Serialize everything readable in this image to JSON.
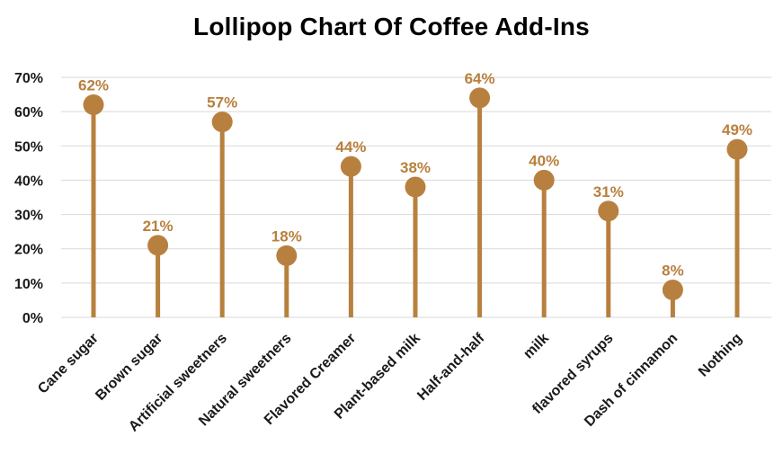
{
  "chart_data": {
    "type": "lollipop",
    "title": "Lollipop Chart Of Coffee Add-Ins",
    "xlabel": "",
    "ylabel": "",
    "categories": [
      "Cane sugar",
      "Brown sugar",
      "Artificial sweetners",
      "Natural sweetners",
      "Flavored Creamer",
      "Plant-based milk",
      "Half-and-half",
      "milk",
      "flavored syrups",
      "Dash of cinnamon",
      "Nothing"
    ],
    "values": [
      62,
      21,
      57,
      18,
      44,
      38,
      64,
      40,
      31,
      8,
      49
    ],
    "value_labels": [
      "62%",
      "21%",
      "57%",
      "18%",
      "44%",
      "38%",
      "64%",
      "40%",
      "31%",
      "8%",
      "49%"
    ],
    "yticks": [
      0,
      10,
      20,
      30,
      40,
      50,
      60,
      70
    ],
    "ytick_labels": [
      "0%",
      "10%",
      "20%",
      "30%",
      "40%",
      "50%",
      "60%",
      "70%"
    ],
    "ylim": [
      0,
      70
    ],
    "grid": true,
    "legend": "none",
    "colors": {
      "lollipop": "#B8803E",
      "data_label": "#B8803E",
      "grid": "#d9d9d9",
      "text": "#1a1a1a"
    }
  }
}
